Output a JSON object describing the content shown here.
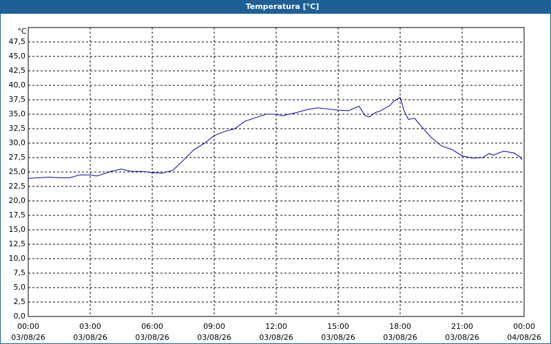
{
  "chart_data": {
    "type": "line",
    "title": "Temperatura [°C]",
    "y_unit": "°C",
    "x": [
      0,
      0.5,
      1,
      1.5,
      2,
      2.5,
      3,
      3.3,
      3.5,
      4,
      4.5,
      5,
      5.5,
      6,
      6.5,
      7,
      7.5,
      8,
      8.5,
      9,
      9.5,
      10,
      10.5,
      11,
      11.5,
      12,
      12.3,
      12.5,
      13,
      13.5,
      14,
      14.5,
      15,
      15.5,
      16,
      16.3,
      16.5,
      16.8,
      17,
      17.5,
      17.7,
      18,
      18.2,
      18.4,
      18.7,
      19,
      19.5,
      20,
      20.5,
      21,
      21.5,
      22,
      22.3,
      22.5,
      23,
      23.5,
      23.8,
      23.9
    ],
    "series": [
      {
        "name": "Temperatura",
        "color": "#0000a0",
        "values": [
          23.9,
          24.0,
          24.1,
          24.0,
          24.0,
          24.5,
          24.5,
          24.3,
          24.5,
          25.1,
          25.5,
          25.1,
          25.1,
          24.9,
          24.8,
          25.3,
          27.0,
          28.8,
          29.9,
          31.3,
          32.0,
          32.5,
          33.8,
          34.4,
          35.0,
          35.0,
          34.7,
          34.9,
          35.3,
          35.8,
          36.1,
          35.9,
          35.7,
          35.6,
          36.4,
          34.8,
          34.5,
          35.3,
          35.5,
          36.5,
          37.3,
          37.9,
          35.5,
          34.1,
          34.3,
          33.0,
          31.0,
          29.5,
          28.9,
          27.8,
          27.4,
          27.5,
          28.2,
          27.9,
          28.6,
          28.3,
          27.6,
          27.1
        ]
      }
    ],
    "xlim": [
      0,
      24
    ],
    "xticks": [
      {
        "value": 0,
        "label": "00:00",
        "date": "03/08/26"
      },
      {
        "value": 3,
        "label": "03:00",
        "date": "03/08/26"
      },
      {
        "value": 6,
        "label": "06:00",
        "date": "03/08/26"
      },
      {
        "value": 9,
        "label": "09:00",
        "date": "03/08/26"
      },
      {
        "value": 12,
        "label": "12:00",
        "date": "03/08/26"
      },
      {
        "value": 15,
        "label": "15:00",
        "date": "03/08/26"
      },
      {
        "value": 18,
        "label": "18:00",
        "date": "03/08/26"
      },
      {
        "value": 21,
        "label": "21:00",
        "date": "03/08/26"
      },
      {
        "value": 24,
        "label": "00:00",
        "date": "04/08/26"
      }
    ],
    "ylim": [
      0,
      50
    ],
    "yticks": [
      {
        "value": 0,
        "label": "0,0"
      },
      {
        "value": 2.5,
        "label": "2,5"
      },
      {
        "value": 5,
        "label": "5,0"
      },
      {
        "value": 7.5,
        "label": "7,5"
      },
      {
        "value": 10,
        "label": "10,0"
      },
      {
        "value": 12.5,
        "label": "12,5"
      },
      {
        "value": 15,
        "label": "15,0"
      },
      {
        "value": 17.5,
        "label": "17,5"
      },
      {
        "value": 20,
        "label": "20,0"
      },
      {
        "value": 22.5,
        "label": "22,5"
      },
      {
        "value": 25,
        "label": "25,0"
      },
      {
        "value": 27.5,
        "label": "27,5"
      },
      {
        "value": 30,
        "label": "30,0"
      },
      {
        "value": 32.5,
        "label": "32,5"
      },
      {
        "value": 35,
        "label": "35,0"
      },
      {
        "value": 37.5,
        "label": "37,5"
      },
      {
        "value": 40,
        "label": "40,0"
      },
      {
        "value": 42.5,
        "label": "42,5"
      },
      {
        "value": 45,
        "label": "45,0"
      },
      {
        "value": 47.5,
        "label": "47,5"
      }
    ],
    "grid": true
  }
}
